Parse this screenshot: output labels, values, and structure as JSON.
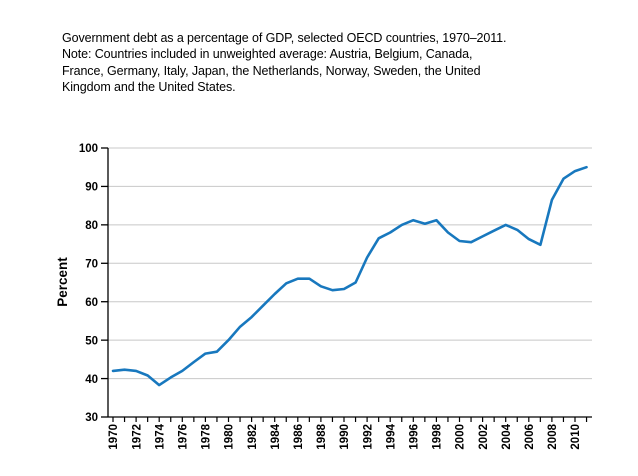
{
  "title": {
    "lines": [
      "Government debt as a percentage of GDP, selected OECD countries, 1970–2011.",
      "Note: Countries included in unweighted average: Austria, Belgium, Canada,",
      "France, Germany, Italy, Japan, the Netherlands, Norway, Sweden, the United",
      "Kingdom and the United States."
    ]
  },
  "chart_data": {
    "type": "line",
    "title": "Government debt as a percentage of GDP, selected OECD countries, 1970–2011",
    "xlabel": "",
    "ylabel": "Percent",
    "ylim": [
      30,
      100
    ],
    "y_ticks": [
      30,
      40,
      50,
      60,
      70,
      80,
      90,
      100
    ],
    "grid": "horizontal",
    "legend": "none",
    "line_color": "#1878BE",
    "gridline_color": "#c8c8c8",
    "axis_color": "#000000",
    "x": [
      1970,
      1971,
      1972,
      1973,
      1974,
      1975,
      1976,
      1977,
      1978,
      1979,
      1980,
      1981,
      1982,
      1983,
      1984,
      1985,
      1986,
      1987,
      1988,
      1989,
      1990,
      1991,
      1992,
      1993,
      1994,
      1995,
      1996,
      1997,
      1998,
      1999,
      2000,
      2001,
      2002,
      2003,
      2004,
      2005,
      2006,
      2007,
      2008,
      2009,
      2010,
      2011
    ],
    "x_tick_labels": [
      "1970",
      "1972",
      "1974",
      "1976",
      "1978",
      "1980",
      "1982",
      "1984",
      "1986",
      "1988",
      "1990",
      "1992",
      "1994",
      "1996",
      "1998",
      "2000",
      "2002",
      "2004",
      "2006",
      "2008",
      "2010"
    ],
    "series": [
      {
        "name": "Unweighted average government debt (% of GDP)",
        "values": [
          42.0,
          42.3,
          42.0,
          40.8,
          38.3,
          40.3,
          42.0,
          44.3,
          46.5,
          47.0,
          50.0,
          53.5,
          56.0,
          59.0,
          62.0,
          64.8,
          66.0,
          66.0,
          64.0,
          63.0,
          63.3,
          65.0,
          71.5,
          76.5,
          78.0,
          80.0,
          81.2,
          80.3,
          81.2,
          78.0,
          75.8,
          75.5,
          77.0,
          78.5,
          80.0,
          78.7,
          76.3,
          74.8,
          86.5,
          92.0,
          94.0,
          95.0
        ]
      }
    ]
  }
}
